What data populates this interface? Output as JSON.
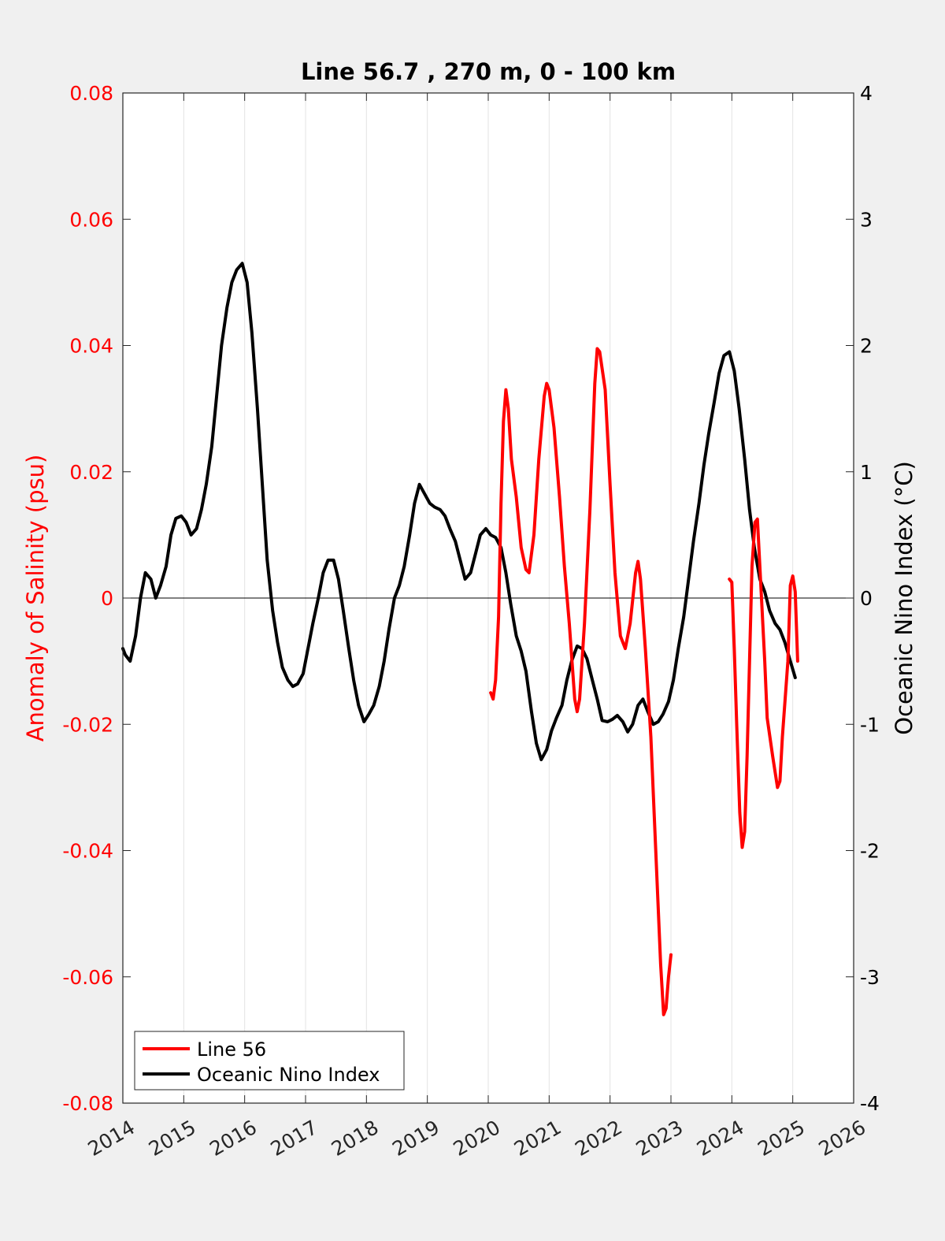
{
  "chart_data": {
    "type": "line",
    "title": "Line 56.7 , 270 m, 0 - 100 km",
    "xlabel": "",
    "ylabel_left": "Anomaly of Salinity (psu)",
    "ylabel_right": "Oceanic Nino Index (°C)",
    "xlim": [
      2014,
      2026
    ],
    "ylim_left": [
      -0.08,
      0.08
    ],
    "ylim_right": [
      -4,
      4
    ],
    "x_ticks": [
      "2014",
      "2015",
      "2016",
      "2017",
      "2018",
      "2019",
      "2020",
      "2021",
      "2022",
      "2023",
      "2024",
      "2025",
      "2026"
    ],
    "y_left_ticks": [
      "-0.08",
      "-0.06",
      "-0.04",
      "-0.02",
      "0",
      "0.02",
      "0.04",
      "0.06",
      "0.08"
    ],
    "y_right_ticks": [
      "-4",
      "-3",
      "-2",
      "-1",
      "0",
      "1",
      "2",
      "3",
      "4"
    ],
    "grid": "vertical",
    "legend_position": "bottom-left",
    "series": [
      {
        "name": "Line 56",
        "axis": "left",
        "color": "#ff0000",
        "segments": [
          [
            [
              2020.04,
              -0.015
            ],
            [
              2020.08,
              -0.016
            ],
            [
              2020.12,
              -0.013
            ],
            [
              2020.17,
              -0.003
            ],
            [
              2020.21,
              0.015
            ],
            [
              2020.25,
              0.028
            ],
            [
              2020.29,
              0.033
            ],
            [
              2020.33,
              0.03
            ],
            [
              2020.38,
              0.022
            ],
            [
              2020.46,
              0.016
            ],
            [
              2020.54,
              0.008
            ],
            [
              2020.62,
              0.0045
            ],
            [
              2020.67,
              0.004
            ],
            [
              2020.75,
              0.01
            ],
            [
              2020.83,
              0.022
            ],
            [
              2020.92,
              0.032
            ],
            [
              2020.96,
              0.034
            ],
            [
              2021.0,
              0.033
            ],
            [
              2021.08,
              0.027
            ],
            [
              2021.17,
              0.016
            ],
            [
              2021.25,
              0.005
            ],
            [
              2021.33,
              -0.004
            ],
            [
              2021.42,
              -0.016
            ],
            [
              2021.46,
              -0.018
            ],
            [
              2021.5,
              -0.016
            ],
            [
              2021.58,
              -0.004
            ],
            [
              2021.67,
              0.014
            ],
            [
              2021.75,
              0.034
            ],
            [
              2021.79,
              0.0395
            ],
            [
              2021.83,
              0.039
            ],
            [
              2021.92,
              0.033
            ],
            [
              2022.0,
              0.018
            ],
            [
              2022.08,
              0.004
            ],
            [
              2022.17,
              -0.006
            ],
            [
              2022.25,
              -0.008
            ],
            [
              2022.33,
              -0.004
            ],
            [
              2022.42,
              0.004
            ],
            [
              2022.46,
              0.0058
            ],
            [
              2022.5,
              0.003
            ],
            [
              2022.58,
              -0.008
            ],
            [
              2022.67,
              -0.022
            ],
            [
              2022.75,
              -0.04
            ],
            [
              2022.83,
              -0.058
            ],
            [
              2022.88,
              -0.066
            ],
            [
              2022.92,
              -0.065
            ],
            [
              2022.96,
              -0.06
            ],
            [
              2023.0,
              -0.0565
            ]
          ],
          [
            [
              2023.96,
              0.003
            ],
            [
              2024.0,
              0.0025
            ],
            [
              2024.04,
              -0.008
            ],
            [
              2024.08,
              -0.02
            ],
            [
              2024.13,
              -0.034
            ],
            [
              2024.17,
              -0.0395
            ],
            [
              2024.21,
              -0.037
            ],
            [
              2024.25,
              -0.025
            ],
            [
              2024.29,
              -0.01
            ],
            [
              2024.33,
              0.005
            ],
            [
              2024.38,
              0.012
            ],
            [
              2024.42,
              0.0125
            ],
            [
              2024.46,
              0.005
            ],
            [
              2024.54,
              -0.01
            ],
            [
              2024.58,
              -0.019
            ],
            [
              2024.67,
              -0.025
            ],
            [
              2024.75,
              -0.03
            ],
            [
              2024.79,
              -0.029
            ],
            [
              2024.83,
              -0.022
            ],
            [
              2024.92,
              -0.01
            ],
            [
              2024.96,
              0.002
            ],
            [
              2025.0,
              0.0035
            ],
            [
              2025.04,
              0.001
            ],
            [
              2025.08,
              -0.01
            ]
          ]
        ]
      },
      {
        "name": "Oceanic Nino Index",
        "axis": "right",
        "color": "#000000",
        "segments": [
          [
            [
              2014.0,
              -0.4
            ],
            [
              2014.04,
              -0.45
            ],
            [
              2014.12,
              -0.5
            ],
            [
              2014.21,
              -0.3
            ],
            [
              2014.29,
              0.0
            ],
            [
              2014.37,
              0.2
            ],
            [
              2014.46,
              0.15
            ],
            [
              2014.54,
              0.0
            ],
            [
              2014.62,
              0.1
            ],
            [
              2014.71,
              0.25
            ],
            [
              2014.79,
              0.5
            ],
            [
              2014.87,
              0.63
            ],
            [
              2014.96,
              0.65
            ],
            [
              2015.04,
              0.6
            ],
            [
              2015.12,
              0.5
            ],
            [
              2015.21,
              0.55
            ],
            [
              2015.29,
              0.7
            ],
            [
              2015.37,
              0.9
            ],
            [
              2015.46,
              1.2
            ],
            [
              2015.54,
              1.6
            ],
            [
              2015.62,
              2.0
            ],
            [
              2015.71,
              2.3
            ],
            [
              2015.79,
              2.5
            ],
            [
              2015.87,
              2.6
            ],
            [
              2015.96,
              2.65
            ],
            [
              2016.04,
              2.5
            ],
            [
              2016.12,
              2.1
            ],
            [
              2016.21,
              1.5
            ],
            [
              2016.29,
              0.9
            ],
            [
              2016.37,
              0.3
            ],
            [
              2016.46,
              -0.1
            ],
            [
              2016.54,
              -0.35
            ],
            [
              2016.62,
              -0.55
            ],
            [
              2016.71,
              -0.65
            ],
            [
              2016.79,
              -0.7
            ],
            [
              2016.87,
              -0.68
            ],
            [
              2016.96,
              -0.6
            ],
            [
              2017.04,
              -0.4
            ],
            [
              2017.12,
              -0.2
            ],
            [
              2017.21,
              0.0
            ],
            [
              2017.29,
              0.2
            ],
            [
              2017.37,
              0.3
            ],
            [
              2017.46,
              0.3
            ],
            [
              2017.54,
              0.15
            ],
            [
              2017.62,
              -0.1
            ],
            [
              2017.71,
              -0.4
            ],
            [
              2017.79,
              -0.65
            ],
            [
              2017.87,
              -0.85
            ],
            [
              2017.96,
              -0.98
            ],
            [
              2018.04,
              -0.92
            ],
            [
              2018.12,
              -0.85
            ],
            [
              2018.21,
              -0.7
            ],
            [
              2018.29,
              -0.5
            ],
            [
              2018.37,
              -0.25
            ],
            [
              2018.46,
              0.0
            ],
            [
              2018.54,
              0.1
            ],
            [
              2018.62,
              0.25
            ],
            [
              2018.71,
              0.5
            ],
            [
              2018.79,
              0.75
            ],
            [
              2018.87,
              0.9
            ],
            [
              2018.96,
              0.82
            ],
            [
              2019.04,
              0.75
            ],
            [
              2019.12,
              0.72
            ],
            [
              2019.21,
              0.7
            ],
            [
              2019.29,
              0.65
            ],
            [
              2019.37,
              0.55
            ],
            [
              2019.46,
              0.45
            ],
            [
              2019.54,
              0.3
            ],
            [
              2019.62,
              0.15
            ],
            [
              2019.71,
              0.2
            ],
            [
              2019.79,
              0.35
            ],
            [
              2019.87,
              0.5
            ],
            [
              2019.96,
              0.55
            ],
            [
              2020.04,
              0.5
            ],
            [
              2020.12,
              0.48
            ],
            [
              2020.21,
              0.4
            ],
            [
              2020.29,
              0.2
            ],
            [
              2020.37,
              -0.05
            ],
            [
              2020.46,
              -0.3
            ],
            [
              2020.54,
              -0.42
            ],
            [
              2020.62,
              -0.58
            ],
            [
              2020.71,
              -0.9
            ],
            [
              2020.79,
              -1.15
            ],
            [
              2020.87,
              -1.28
            ],
            [
              2020.96,
              -1.2
            ],
            [
              2021.04,
              -1.05
            ],
            [
              2021.12,
              -0.95
            ],
            [
              2021.21,
              -0.85
            ],
            [
              2021.29,
              -0.65
            ],
            [
              2021.37,
              -0.5
            ],
            [
              2021.46,
              -0.38
            ],
            [
              2021.54,
              -0.4
            ],
            [
              2021.62,
              -0.48
            ],
            [
              2021.71,
              -0.65
            ],
            [
              2021.79,
              -0.8
            ],
            [
              2021.87,
              -0.97
            ],
            [
              2021.96,
              -0.98
            ],
            [
              2022.04,
              -0.96
            ],
            [
              2022.12,
              -0.93
            ],
            [
              2022.21,
              -0.98
            ],
            [
              2022.29,
              -1.06
            ],
            [
              2022.37,
              -1.0
            ],
            [
              2022.46,
              -0.85
            ],
            [
              2022.54,
              -0.8
            ],
            [
              2022.62,
              -0.9
            ],
            [
              2022.71,
              -1.0
            ],
            [
              2022.79,
              -0.98
            ],
            [
              2022.87,
              -0.92
            ],
            [
              2022.96,
              -0.82
            ],
            [
              2023.04,
              -0.65
            ],
            [
              2023.12,
              -0.4
            ],
            [
              2023.21,
              -0.15
            ],
            [
              2023.29,
              0.15
            ],
            [
              2023.37,
              0.45
            ],
            [
              2023.46,
              0.75
            ],
            [
              2023.54,
              1.05
            ],
            [
              2023.62,
              1.3
            ],
            [
              2023.71,
              1.55
            ],
            [
              2023.79,
              1.78
            ],
            [
              2023.87,
              1.92
            ],
            [
              2023.96,
              1.95
            ],
            [
              2024.04,
              1.8
            ],
            [
              2024.12,
              1.5
            ],
            [
              2024.21,
              1.1
            ],
            [
              2024.29,
              0.7
            ],
            [
              2024.37,
              0.4
            ],
            [
              2024.46,
              0.15
            ],
            [
              2024.54,
              0.05
            ],
            [
              2024.62,
              -0.1
            ],
            [
              2024.71,
              -0.2
            ],
            [
              2024.79,
              -0.25
            ],
            [
              2024.87,
              -0.35
            ],
            [
              2024.96,
              -0.5
            ],
            [
              2025.04,
              -0.63
            ]
          ]
        ]
      }
    ]
  }
}
